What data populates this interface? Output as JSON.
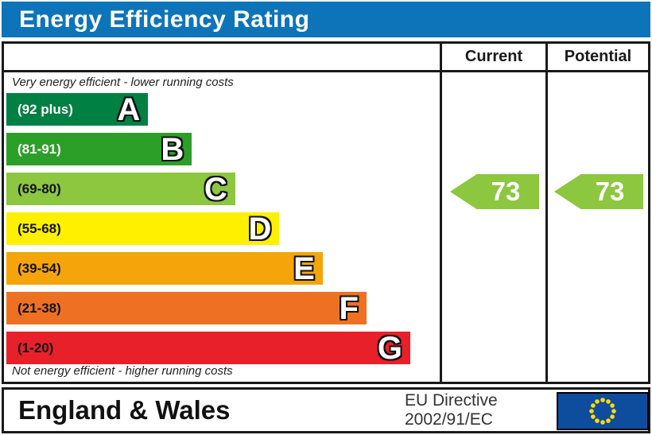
{
  "title": "Energy Efficiency Rating",
  "table": {
    "columns": [
      "Current",
      "Potential"
    ]
  },
  "chart": {
    "top_note": "Very energy efficient - lower running costs",
    "bottom_note": "Not energy efficient - higher running costs",
    "bands": [
      {
        "letter": "A",
        "range": "(92 plus)",
        "color": "#008042",
        "range_text_color": "#ffffff",
        "width_pct": 32.7
      },
      {
        "letter": "B",
        "range": "(81-91)",
        "color": "#2c9f29",
        "range_text_color": "#ffffff",
        "width_pct": 42.8
      },
      {
        "letter": "C",
        "range": "(69-80)",
        "color": "#8dc63f",
        "range_text_color": "#111111",
        "width_pct": 52.8
      },
      {
        "letter": "D",
        "range": "(55-68)",
        "color": "#fff000",
        "range_text_color": "#111111",
        "width_pct": 63.0
      },
      {
        "letter": "E",
        "range": "(39-54)",
        "color": "#f5a50a",
        "range_text_color": "#111111",
        "width_pct": 73.0
      },
      {
        "letter": "F",
        "range": "(21-38)",
        "color": "#ee7123",
        "range_text_color": "#111111",
        "width_pct": 83.1
      },
      {
        "letter": "G",
        "range": "(1-20)",
        "color": "#e8202a",
        "range_text_color": "#111111",
        "width_pct": 93.2
      }
    ],
    "current": {
      "value": "73",
      "band": "C",
      "color": "#8dc63f"
    },
    "potential": {
      "value": "73",
      "band": "C",
      "color": "#8dc63f"
    }
  },
  "footer": {
    "region": "England & Wales",
    "directive_line1": "EU Directive",
    "directive_line2": "2002/91/EC"
  },
  "colors": {
    "title_bar_blue": "#0d74ba",
    "border_black": "#1a1a1a",
    "eu_flag_blue": "#0e4c9e",
    "eu_star_yellow": "#ffdd00"
  },
  "chart_data": {
    "type": "bar",
    "title": "Energy Efficiency Rating",
    "categories": [
      "A (92 plus)",
      "B (81-91)",
      "C (69-80)",
      "D (55-68)",
      "E (39-54)",
      "F (21-38)",
      "G (1-20)"
    ],
    "band_ranges": [
      [
        92,
        100
      ],
      [
        81,
        91
      ],
      [
        69,
        80
      ],
      [
        55,
        68
      ],
      [
        39,
        54
      ],
      [
        21,
        38
      ],
      [
        1,
        20
      ]
    ],
    "band_colors": [
      "#008042",
      "#2c9f29",
      "#8dc63f",
      "#fff000",
      "#f5a50a",
      "#ee7123",
      "#e8202a"
    ],
    "series": [
      {
        "name": "Current",
        "values": [
          73
        ],
        "band": "C"
      },
      {
        "name": "Potential",
        "values": [
          73
        ],
        "band": "C"
      }
    ],
    "xlabel": "",
    "ylabel": "",
    "xlim": [
      1,
      100
    ],
    "annotations": [
      "Very energy efficient - lower running costs",
      "Not energy efficient - higher running costs",
      "England & Wales",
      "EU Directive 2002/91/EC"
    ],
    "legend_position": "table-header-right",
    "grid": false
  }
}
